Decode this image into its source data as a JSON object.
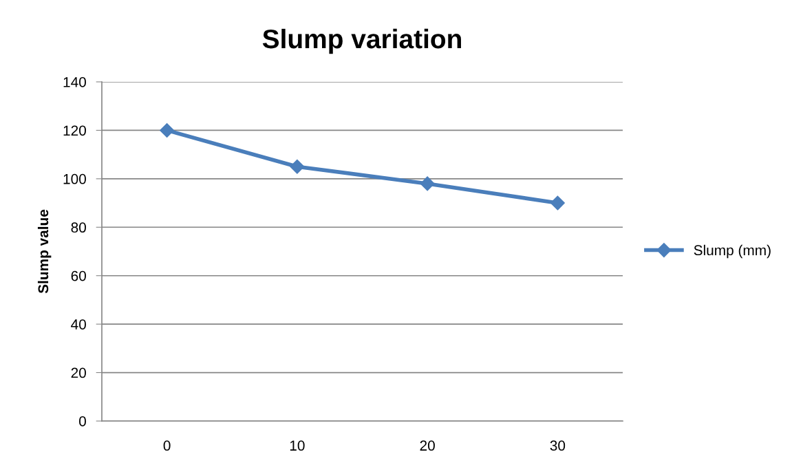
{
  "chart_data": {
    "type": "line",
    "title": "Slump variation",
    "ylabel": "Slump value",
    "categories": [
      "0",
      "10",
      "20",
      "30"
    ],
    "series": [
      {
        "name": "Slump (mm)",
        "color": "#4a7ebb",
        "values": [
          120,
          105,
          98,
          90
        ]
      }
    ],
    "ylim": [
      0,
      140
    ],
    "yticks": [
      0,
      20,
      40,
      60,
      80,
      100,
      120,
      140
    ],
    "grid": "y",
    "legend": "right",
    "marker": "diamond",
    "line_style": "solid"
  }
}
